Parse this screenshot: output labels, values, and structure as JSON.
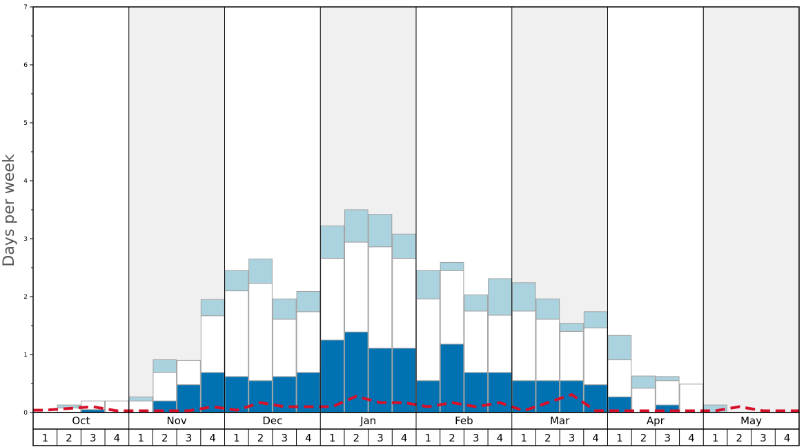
{
  "chart_data": {
    "type": "bar",
    "ylabel": "Days per week",
    "ylim": [
      0,
      7
    ],
    "y_ticks": [
      0,
      1,
      2,
      3,
      4,
      5,
      6,
      7
    ],
    "stacked": true,
    "months": [
      "Oct",
      "Nov",
      "Dec",
      "Jan",
      "Feb",
      "Mar",
      "Apr",
      "May"
    ],
    "weeks": [
      "1",
      "2",
      "3",
      "4"
    ],
    "shaded_months": [
      "Nov",
      "Jan",
      "Mar",
      "May"
    ],
    "colors": {
      "dark_segment": "#0072b2",
      "middle_segment": "#ffffff",
      "light_segment": "#abd3df",
      "dashed_line": "#d7102a",
      "shaded_band": "#f0f0f0",
      "bar_edge": "#a0a0a0"
    },
    "series": [
      {
        "key": "dark",
        "values": [
          0,
          0,
          0.05,
          0,
          0,
          0.2,
          0.48,
          0.69,
          0.62,
          0.55,
          0.62,
          0.69,
          1.25,
          1.39,
          1.11,
          1.11,
          0.55,
          1.18,
          0.69,
          0.69,
          0.55,
          0.55,
          0.55,
          0.48,
          0.27,
          0,
          0.13,
          0,
          0,
          0,
          0,
          0
        ]
      },
      {
        "key": "middle",
        "values": [
          0,
          0.08,
          0.15,
          0.2,
          0.2,
          0.49,
          0.42,
          0.98,
          1.48,
          1.68,
          0.99,
          1.05,
          1.41,
          1.55,
          1.75,
          1.55,
          1.41,
          1.27,
          1.06,
          0.99,
          1.2,
          1.06,
          0.85,
          0.98,
          0.64,
          0.42,
          0.42,
          0.49,
          0,
          0,
          0,
          0
        ]
      },
      {
        "key": "light",
        "values": [
          0,
          0.05,
          0,
          0,
          0.07,
          0.22,
          0,
          0.28,
          0.35,
          0.42,
          0.35,
          0.35,
          0.56,
          0.56,
          0.56,
          0.42,
          0.49,
          0.14,
          0.28,
          0.63,
          0.49,
          0.35,
          0.14,
          0.28,
          0.42,
          0.21,
          0.07,
          0,
          0.13,
          0,
          0,
          0
        ]
      },
      {
        "key": "dashed-line",
        "values": [
          0.04,
          0.07,
          0.1,
          0.03,
          0.03,
          0.03,
          0.03,
          0.1,
          0.04,
          0.17,
          0.1,
          0.1,
          0.1,
          0.28,
          0.17,
          0.17,
          0.1,
          0.17,
          0.1,
          0.17,
          0.03,
          0.17,
          0.31,
          0.03,
          0.03,
          0.03,
          0.03,
          0.03,
          0.03,
          0.1,
          0.03,
          0.03
        ]
      }
    ]
  }
}
